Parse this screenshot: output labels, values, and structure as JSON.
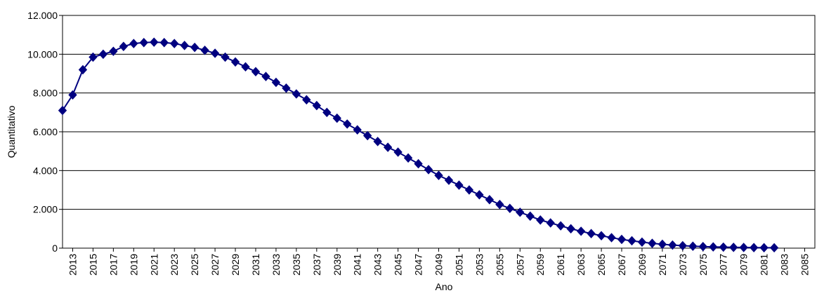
{
  "chart_data": {
    "type": "line",
    "title": "",
    "xlabel": "Ano",
    "ylabel": "Quantitativo",
    "xlim": [
      2012,
      2086
    ],
    "ylim": [
      0,
      12000
    ],
    "y_ticks": [
      0,
      2000,
      4000,
      6000,
      8000,
      10000,
      12000
    ],
    "y_tick_labels": [
      "0",
      "2.000",
      "4.000",
      "6.000",
      "8.000",
      "10.000",
      "12.000"
    ],
    "x_ticks": [
      2013,
      2015,
      2017,
      2019,
      2021,
      2023,
      2025,
      2027,
      2029,
      2031,
      2033,
      2035,
      2037,
      2039,
      2041,
      2043,
      2045,
      2047,
      2049,
      2051,
      2053,
      2055,
      2057,
      2059,
      2061,
      2063,
      2065,
      2067,
      2069,
      2071,
      2073,
      2075,
      2077,
      2079,
      2081,
      2083,
      2085
    ],
    "x_tick_labels": [
      "2013",
      "2015",
      "2017",
      "2019",
      "2021",
      "2023",
      "2025",
      "2027",
      "2029",
      "2031",
      "2033",
      "2035",
      "2037",
      "2039",
      "2041",
      "2043",
      "2045",
      "2047",
      "2049",
      "2051",
      "2053",
      "2055",
      "2057",
      "2059",
      "2061",
      "2063",
      "2065",
      "2067",
      "2069",
      "2071",
      "2073",
      "2075",
      "2077",
      "2079",
      "2081",
      "2083",
      "2085"
    ],
    "grid": {
      "horizontal": true,
      "vertical": false
    },
    "legend": "none",
    "colors": {
      "series": "#000080",
      "grid": "#000000",
      "background": "#ffffff"
    },
    "series": [
      {
        "x": [
          2012,
          2013,
          2014,
          2015,
          2016,
          2017,
          2018,
          2019,
          2020,
          2021,
          2022,
          2023,
          2024,
          2025,
          2026,
          2027,
          2028,
          2029,
          2030,
          2031,
          2032,
          2033,
          2034,
          2035,
          2036,
          2037,
          2038,
          2039,
          2040,
          2041,
          2042,
          2043,
          2044,
          2045,
          2046,
          2047,
          2048,
          2049,
          2050,
          2051,
          2052,
          2053,
          2054,
          2055,
          2056,
          2057,
          2058,
          2059,
          2060,
          2061,
          2062,
          2063,
          2064,
          2065,
          2066,
          2067,
          2068,
          2069,
          2070,
          2071,
          2072,
          2073,
          2074,
          2075,
          2076,
          2077,
          2078,
          2079,
          2080,
          2081,
          2082
        ],
        "values": [
          7100,
          7900,
          9200,
          9850,
          10000,
          10150,
          10400,
          10550,
          10600,
          10620,
          10600,
          10550,
          10450,
          10350,
          10200,
          10050,
          9850,
          9600,
          9350,
          9100,
          8850,
          8550,
          8250,
          7950,
          7650,
          7350,
          7000,
          6700,
          6400,
          6100,
          5800,
          5500,
          5200,
          4950,
          4650,
          4350,
          4050,
          3750,
          3500,
          3250,
          3000,
          2750,
          2500,
          2250,
          2050,
          1850,
          1650,
          1450,
          1300,
          1150,
          1000,
          870,
          750,
          640,
          540,
          450,
          380,
          310,
          250,
          200,
          160,
          125,
          100,
          80,
          65,
          52,
          42,
          35,
          28,
          24,
          20
        ]
      }
    ]
  }
}
